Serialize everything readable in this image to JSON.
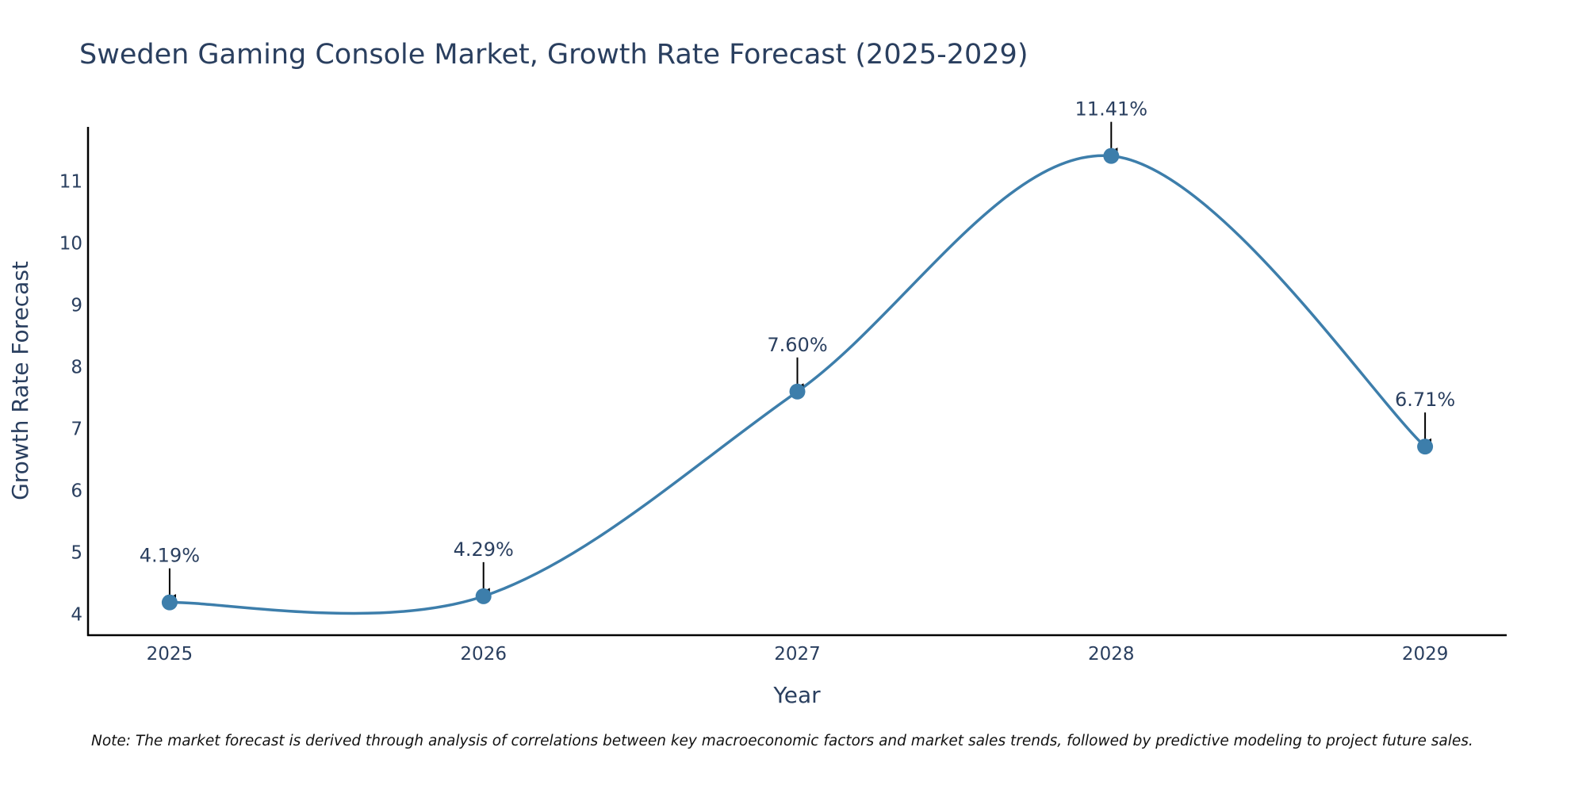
{
  "chart_data": {
    "type": "line",
    "title": "Sweden Gaming Console Market, Growth Rate Forecast (2025-2029)",
    "xlabel": "Year",
    "ylabel": "Growth Rate Forecast",
    "categories": [
      "2025",
      "2026",
      "2027",
      "2028",
      "2029"
    ],
    "series": [
      {
        "name": "Growth Rate Forecast",
        "values": [
          4.19,
          4.29,
          7.6,
          11.41,
          6.71
        ],
        "labels": [
          "4.19%",
          "4.29%",
          "7.60%",
          "11.41%",
          "6.71%"
        ]
      }
    ],
    "yticks": [
      4,
      5,
      6,
      7,
      8,
      9,
      10,
      11
    ],
    "ylim": [
      3.66,
      11.88
    ],
    "xlim": [
      2024.74,
      2029.26
    ],
    "grid": false,
    "legend": "none",
    "line_shape": "spline",
    "line_color": "#3d7eab",
    "marker_color": "#3d7eab",
    "axis_color": "#000000",
    "note": "Note: The market forecast is derived through analysis of correlations between key macroeconomic factors and market sales trends, followed by predictive modeling to project future sales."
  }
}
